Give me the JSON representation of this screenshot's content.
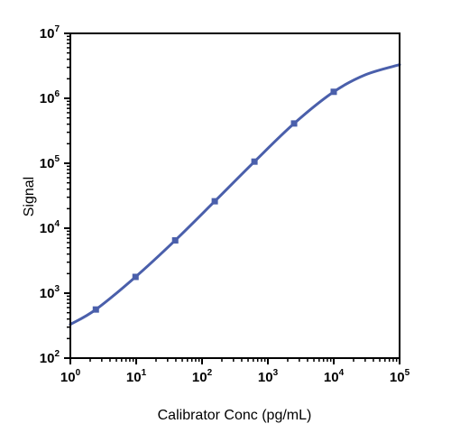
{
  "chart_data": {
    "type": "line",
    "xlabel": "Calibrator Conc (pg/mL)",
    "ylabel": "Signal",
    "x_scale": "log",
    "y_scale": "log",
    "xlim": [
      1,
      100000
    ],
    "ylim": [
      100,
      10000000
    ],
    "x_ticks": [
      {
        "base": "10",
        "exp": "0",
        "value": 1
      },
      {
        "base": "10",
        "exp": "1",
        "value": 10
      },
      {
        "base": "10",
        "exp": "2",
        "value": 100
      },
      {
        "base": "10",
        "exp": "3",
        "value": 1000
      },
      {
        "base": "10",
        "exp": "4",
        "value": 10000
      },
      {
        "base": "10",
        "exp": "5",
        "value": 100000
      }
    ],
    "y_ticks": [
      {
        "base": "10",
        "exp": "2",
        "value": 100
      },
      {
        "base": "10",
        "exp": "3",
        "value": 1000
      },
      {
        "base": "10",
        "exp": "4",
        "value": 10000
      },
      {
        "base": "10",
        "exp": "5",
        "value": 100000
      },
      {
        "base": "10",
        "exp": "6",
        "value": 1000000
      },
      {
        "base": "10",
        "exp": "7",
        "value": 10000000
      }
    ],
    "grid": false,
    "color": "#4a5fab",
    "series": [
      {
        "points": [
          {
            "x": 2.44,
            "y": 560
          },
          {
            "x": 9.77,
            "y": 1780
          },
          {
            "x": 39.1,
            "y": 6500
          },
          {
            "x": 156,
            "y": 26000
          },
          {
            "x": 625,
            "y": 106000
          },
          {
            "x": 2500,
            "y": 410000
          },
          {
            "x": 10000,
            "y": 1260000
          }
        ],
        "curve": [
          {
            "x": 1,
            "y": 330
          },
          {
            "x": 2.44,
            "y": 560
          },
          {
            "x": 9.77,
            "y": 1780
          },
          {
            "x": 39.1,
            "y": 6500
          },
          {
            "x": 156,
            "y": 26000
          },
          {
            "x": 625,
            "y": 106000
          },
          {
            "x": 2500,
            "y": 410000
          },
          {
            "x": 10000,
            "y": 1260000
          },
          {
            "x": 30000,
            "y": 2300000
          },
          {
            "x": 100000,
            "y": 3300000
          }
        ]
      }
    ]
  }
}
